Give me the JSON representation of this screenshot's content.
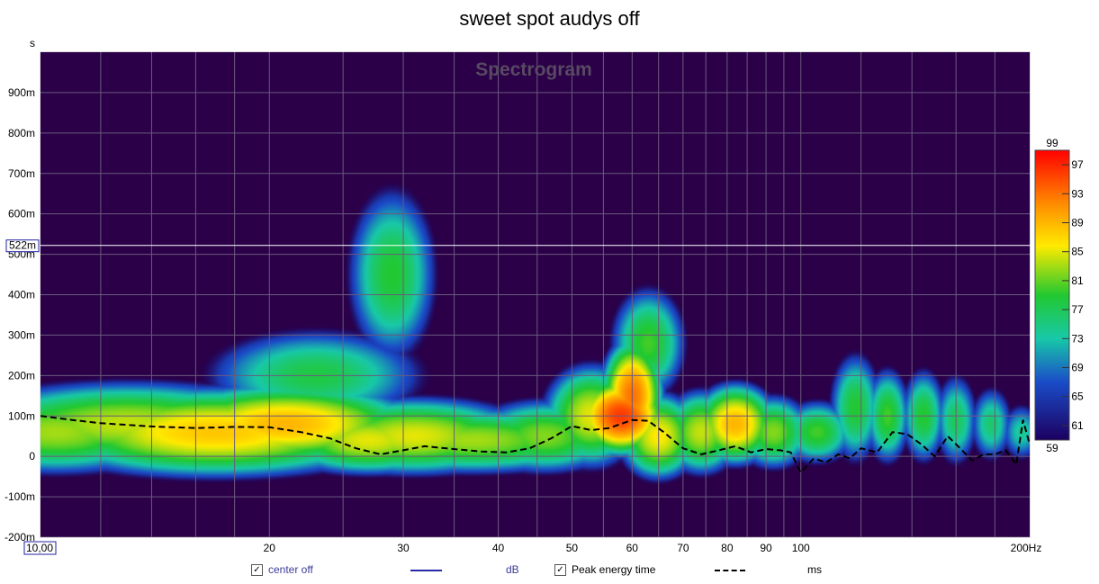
{
  "title": "sweet spot audys off",
  "chart_data": {
    "type": "heatmap",
    "title": "sweet spot audys off",
    "watermark": "Spectrogram",
    "x_axis": {
      "scale": "log",
      "range": [
        10,
        200
      ],
      "ticks": [
        {
          "value": 20,
          "label": "20"
        },
        {
          "value": 30,
          "label": "30"
        },
        {
          "value": 40,
          "label": "40"
        },
        {
          "value": 50,
          "label": "50"
        },
        {
          "value": 60,
          "label": "60"
        },
        {
          "value": 70,
          "label": "70"
        },
        {
          "value": 80,
          "label": "80"
        },
        {
          "value": 90,
          "label": "90"
        },
        {
          "value": 100,
          "label": "100"
        },
        {
          "value": 200,
          "label": "200Hz"
        }
      ],
      "start_label": "10,00",
      "extra_gridlines": [
        12,
        14,
        16,
        18,
        25,
        35,
        45,
        55,
        65,
        75,
        85,
        95,
        120,
        140,
        160,
        180
      ]
    },
    "y_axis": {
      "unit_label": "s",
      "range": [
        -0.2,
        1.0
      ],
      "ticks": [
        {
          "value": 0.9,
          "label": "900m"
        },
        {
          "value": 0.8,
          "label": "800m"
        },
        {
          "value": 0.7,
          "label": "700m"
        },
        {
          "value": 0.6,
          "label": "600m"
        },
        {
          "value": 0.5,
          "label": "500m"
        },
        {
          "value": 0.4,
          "label": "400m"
        },
        {
          "value": 0.3,
          "label": "300m"
        },
        {
          "value": 0.2,
          "label": "200m"
        },
        {
          "value": 0.1,
          "label": "100m"
        },
        {
          "value": 0.0,
          "label": "0"
        },
        {
          "value": -0.1,
          "label": "-100m"
        },
        {
          "value": -0.2,
          "label": "-200m"
        }
      ],
      "cursor": {
        "value": 0.522,
        "label": "522m"
      }
    },
    "colorbar": {
      "range": [
        59,
        99
      ],
      "ticks": [
        97,
        93,
        89,
        85,
        81,
        77,
        73,
        69,
        65,
        61
      ],
      "min_label": "59",
      "max_label": "99"
    },
    "peaks": [
      {
        "f": 10.5,
        "t": 0.06,
        "db": 83,
        "sf": 0.16,
        "st": 0.1
      },
      {
        "f": 13,
        "t": 0.08,
        "db": 84,
        "sf": 0.22,
        "st": 0.1
      },
      {
        "f": 17,
        "t": 0.06,
        "db": 88,
        "sf": 0.22,
        "st": 0.1
      },
      {
        "f": 21,
        "t": 0.08,
        "db": 89,
        "sf": 0.16,
        "st": 0.09
      },
      {
        "f": 23,
        "t": 0.2,
        "db": 78,
        "sf": 0.15,
        "st": 0.12
      },
      {
        "f": 27,
        "t": 0.04,
        "db": 85,
        "sf": 0.12,
        "st": 0.08
      },
      {
        "f": 29,
        "t": 0.45,
        "db": 79,
        "sf": 0.06,
        "st": 0.22
      },
      {
        "f": 31,
        "t": 0.05,
        "db": 85,
        "sf": 0.15,
        "st": 0.09
      },
      {
        "f": 37,
        "t": 0.04,
        "db": 83,
        "sf": 0.18,
        "st": 0.08
      },
      {
        "f": 46,
        "t": 0.05,
        "db": 82,
        "sf": 0.1,
        "st": 0.09
      },
      {
        "f": 53,
        "t": 0.1,
        "db": 85,
        "sf": 0.06,
        "st": 0.12
      },
      {
        "f": 58,
        "t": 0.1,
        "db": 96,
        "sf": 0.05,
        "st": 0.08
      },
      {
        "f": 60,
        "t": 0.15,
        "db": 93,
        "sf": 0.035,
        "st": 0.12
      },
      {
        "f": 63,
        "t": 0.28,
        "db": 80,
        "sf": 0.05,
        "st": 0.14
      },
      {
        "f": 65,
        "t": 0.05,
        "db": 86,
        "sf": 0.05,
        "st": 0.1
      },
      {
        "f": 74,
        "t": 0.06,
        "db": 84,
        "sf": 0.05,
        "st": 0.1
      },
      {
        "f": 82,
        "t": 0.08,
        "db": 89,
        "sf": 0.05,
        "st": 0.09
      },
      {
        "f": 92,
        "t": 0.06,
        "db": 82,
        "sf": 0.05,
        "st": 0.09
      },
      {
        "f": 105,
        "t": 0.06,
        "db": 80,
        "sf": 0.05,
        "st": 0.08
      },
      {
        "f": 118,
        "t": 0.12,
        "db": 79,
        "sf": 0.035,
        "st": 0.14
      },
      {
        "f": 130,
        "t": 0.1,
        "db": 80,
        "sf": 0.03,
        "st": 0.12
      },
      {
        "f": 145,
        "t": 0.1,
        "db": 79,
        "sf": 0.03,
        "st": 0.12
      },
      {
        "f": 160,
        "t": 0.09,
        "db": 77,
        "sf": 0.03,
        "st": 0.12
      },
      {
        "f": 178,
        "t": 0.08,
        "db": 76,
        "sf": 0.03,
        "st": 0.1
      },
      {
        "f": 195,
        "t": 0.06,
        "db": 74,
        "sf": 0.03,
        "st": 0.08
      }
    ],
    "series": [
      {
        "name": "Peak energy time",
        "unit": "ms",
        "style": "dashed",
        "color": "#000000",
        "x": [
          10,
          11,
          12,
          14,
          16,
          18,
          20,
          22,
          24,
          26,
          28,
          30,
          32,
          35,
          38,
          41,
          44,
          47,
          50,
          53,
          56,
          60,
          63,
          66,
          70,
          74,
          78,
          82,
          86,
          90,
          94,
          97,
          100,
          104,
          108,
          112,
          116,
          120,
          126,
          132,
          138,
          144,
          150,
          156,
          162,
          168,
          174,
          180,
          186,
          192,
          196,
          200
        ],
        "y": [
          100,
          90,
          82,
          74,
          70,
          73,
          72,
          60,
          45,
          20,
          5,
          15,
          25,
          18,
          12,
          10,
          20,
          45,
          75,
          65,
          70,
          90,
          88,
          60,
          20,
          5,
          15,
          25,
          10,
          18,
          15,
          10,
          -40,
          -5,
          -15,
          5,
          -5,
          20,
          10,
          60,
          55,
          30,
          0,
          50,
          20,
          -10,
          5,
          5,
          15,
          -20,
          90,
          30
        ]
      }
    ]
  },
  "legend": {
    "series_name": "center off",
    "series_unit": "dB",
    "peak_name": "Peak energy time",
    "peak_unit": "ms",
    "check_mark": "✓"
  },
  "colors": {
    "background": "#2b0048",
    "grid": "#6b5a7e",
    "cursor": "#ffffff",
    "legend_line": "#2a2aa8",
    "legend_text": "#3b3b9a"
  }
}
